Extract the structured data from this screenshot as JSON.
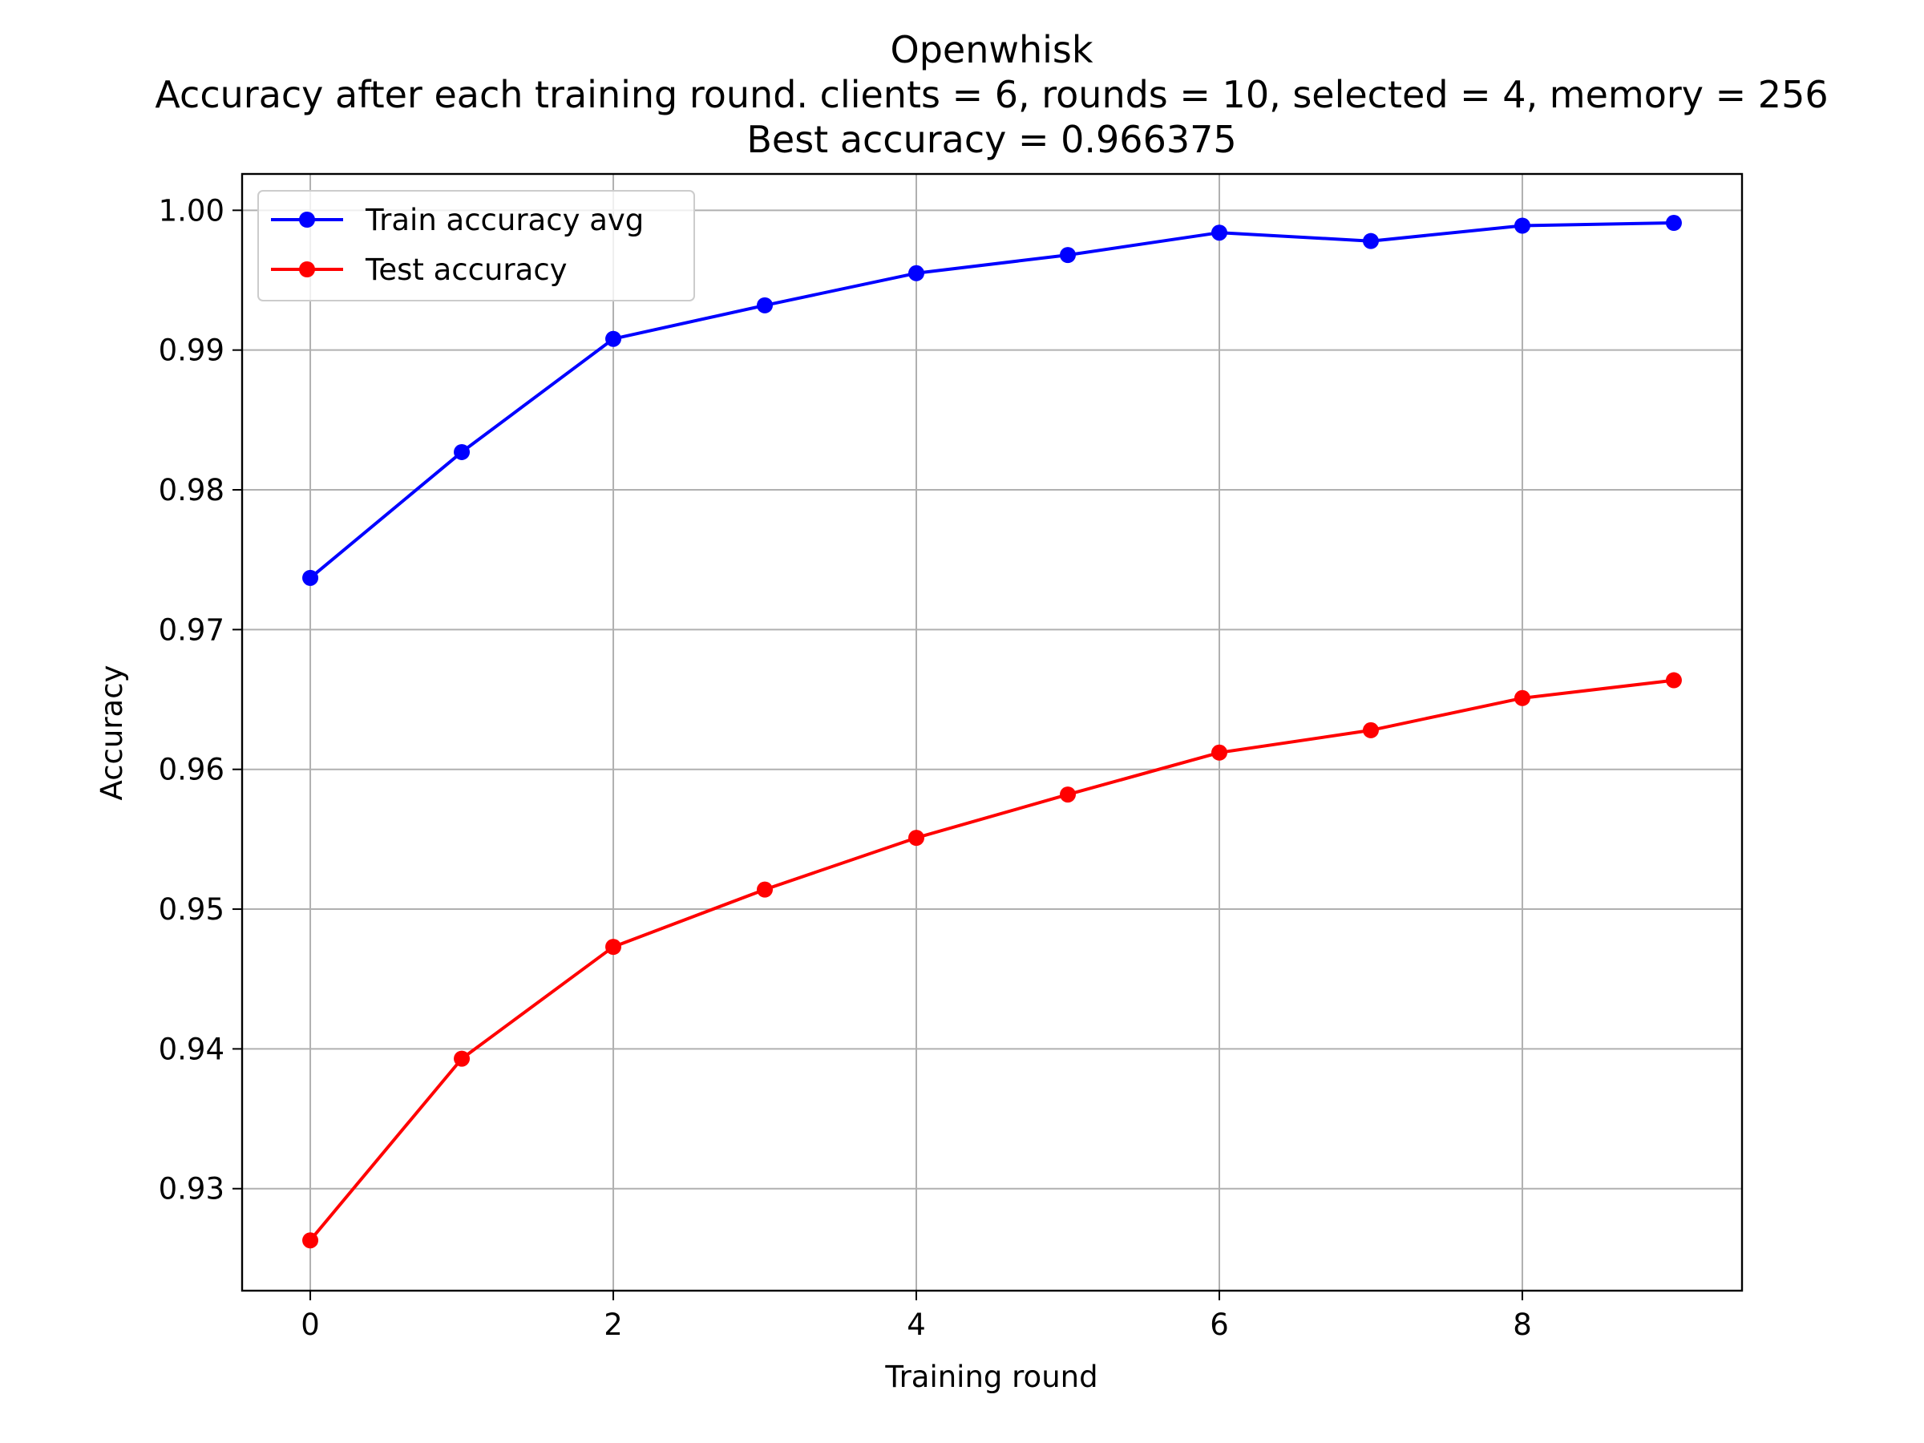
{
  "chart_data": {
    "type": "line",
    "title": "Openwhisk",
    "subtitle": "Accuracy after each training round. clients = 6, rounds = 10, selected = 4, memory = 256",
    "subtitle2": "Best accuracy = 0.966375",
    "xlabel": "Training round",
    "ylabel": "Accuracy",
    "xlim": [
      -0.45,
      9.45
    ],
    "ylim": [
      0.9227,
      1.0026
    ],
    "xticks": [
      0,
      2,
      4,
      6,
      8
    ],
    "xtick_labels": [
      "0",
      "2",
      "4",
      "6",
      "8"
    ],
    "yticks": [
      0.93,
      0.94,
      0.95,
      0.96,
      0.97,
      0.98,
      0.99,
      1.0
    ],
    "ytick_labels": [
      "0.93",
      "0.94",
      "0.95",
      "0.96",
      "0.97",
      "0.98",
      "0.99",
      "1.00"
    ],
    "grid": true,
    "legend_position": "top-left",
    "x": [
      0,
      1,
      2,
      3,
      4,
      5,
      6,
      7,
      8,
      9
    ],
    "series": [
      {
        "name": "Train accuracy avg",
        "color": "#0000ff",
        "marker": "circle",
        "values": [
          0.9737,
          0.9827,
          0.9908,
          0.9932,
          0.9955,
          0.9968,
          0.9984,
          0.9978,
          0.9989,
          0.9991
        ]
      },
      {
        "name": "Test accuracy",
        "color": "#ff0000",
        "marker": "circle",
        "values": [
          0.9263,
          0.9393,
          0.9473,
          0.9514,
          0.9551,
          0.9582,
          0.9612,
          0.9628,
          0.9651,
          0.966375
        ]
      }
    ]
  }
}
